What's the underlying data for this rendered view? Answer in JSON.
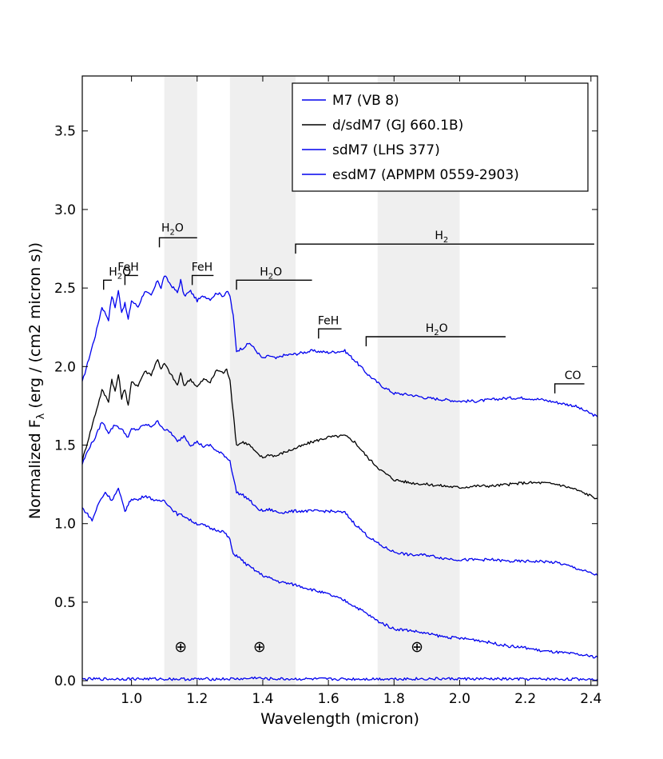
{
  "chart_data": {
    "type": "line",
    "title": "",
    "xlabel": "Wavelength (micron)",
    "ylabel_main": "Normalized F",
    "ylabel_sub": "λ",
    "ylabel_unit": " (erg / (cm2 micron s))",
    "xlim": [
      0.85,
      2.42
    ],
    "ylim": [
      -0.03,
      3.85
    ],
    "x_ticks": [
      {
        "v": 1.0,
        "label": "1.0"
      },
      {
        "v": 1.2,
        "label": "1.2"
      },
      {
        "v": 1.4,
        "label": "1.4"
      },
      {
        "v": 1.6,
        "label": "1.6"
      },
      {
        "v": 1.8,
        "label": "1.8"
      },
      {
        "v": 2.0,
        "label": "2.0"
      },
      {
        "v": 2.2,
        "label": "2.2"
      },
      {
        "v": 2.4,
        "label": "2.4"
      }
    ],
    "y_ticks": [
      {
        "v": 0.0,
        "label": "0.0"
      },
      {
        "v": 0.5,
        "label": "0.5"
      },
      {
        "v": 1.0,
        "label": "1.0"
      },
      {
        "v": 1.5,
        "label": "1.5"
      },
      {
        "v": 2.0,
        "label": "2.0"
      },
      {
        "v": 2.5,
        "label": "2.5"
      },
      {
        "v": 3.0,
        "label": "3.0"
      },
      {
        "v": 3.5,
        "label": "3.5"
      }
    ],
    "telluric_bands": [
      [
        1.1,
        1.2
      ],
      [
        1.3,
        1.5
      ],
      [
        1.75,
        2.0
      ]
    ],
    "earth_symbol": "⊕",
    "earth_symbols_x": [
      1.15,
      1.39,
      1.87
    ],
    "earth_symbol_y": 0.22,
    "legend": [
      {
        "label": "M7 (VB 8)",
        "color": "#0000ee"
      },
      {
        "label": "d/sdM7 (GJ 660.1B)",
        "color": "#000000"
      },
      {
        "label": "sdM7 (LHS 377)",
        "color": "#0000ee"
      },
      {
        "label": "esdM7 (APMPM 0559-2903)",
        "color": "#0000ee"
      }
    ],
    "series": [
      {
        "name": "M7 (VB 8)",
        "color": "#0000ee",
        "x": [
          0.85,
          0.87,
          0.89,
          0.91,
          0.93,
          0.94,
          0.95,
          0.96,
          0.97,
          0.98,
          0.99,
          1.0,
          1.02,
          1.04,
          1.06,
          1.08,
          1.09,
          1.1,
          1.12,
          1.14,
          1.15,
          1.16,
          1.18,
          1.2,
          1.22,
          1.24,
          1.26,
          1.28,
          1.29,
          1.3,
          1.31,
          1.32,
          1.34,
          1.36,
          1.38,
          1.4,
          1.42,
          1.44,
          1.46,
          1.5,
          1.55,
          1.6,
          1.65,
          1.68,
          1.72,
          1.76,
          1.8,
          1.85,
          1.9,
          1.95,
          2.0,
          2.05,
          2.1,
          2.15,
          2.2,
          2.25,
          2.3,
          2.35,
          2.42
        ],
        "y": [
          1.9,
          2.05,
          2.2,
          2.38,
          2.3,
          2.45,
          2.38,
          2.48,
          2.35,
          2.4,
          2.3,
          2.42,
          2.38,
          2.48,
          2.45,
          2.55,
          2.5,
          2.58,
          2.52,
          2.47,
          2.55,
          2.45,
          2.48,
          2.42,
          2.45,
          2.43,
          2.47,
          2.45,
          2.48,
          2.45,
          2.32,
          2.1,
          2.12,
          2.15,
          2.1,
          2.05,
          2.07,
          2.05,
          2.07,
          2.08,
          2.1,
          2.09,
          2.1,
          2.04,
          1.95,
          1.88,
          1.83,
          1.82,
          1.8,
          1.79,
          1.78,
          1.78,
          1.79,
          1.8,
          1.8,
          1.79,
          1.77,
          1.75,
          1.68
        ]
      },
      {
        "name": "d/sdM7 (GJ 660.1B)",
        "color": "#000000",
        "x": [
          0.85,
          0.87,
          0.89,
          0.91,
          0.93,
          0.94,
          0.95,
          0.96,
          0.97,
          0.98,
          0.99,
          1.0,
          1.02,
          1.04,
          1.06,
          1.08,
          1.09,
          1.1,
          1.12,
          1.14,
          1.15,
          1.16,
          1.18,
          1.2,
          1.22,
          1.24,
          1.26,
          1.28,
          1.29,
          1.3,
          1.31,
          1.32,
          1.34,
          1.36,
          1.38,
          1.4,
          1.42,
          1.44,
          1.46,
          1.5,
          1.55,
          1.6,
          1.65,
          1.68,
          1.72,
          1.76,
          1.8,
          1.85,
          1.9,
          1.95,
          2.0,
          2.05,
          2.1,
          2.15,
          2.2,
          2.25,
          2.3,
          2.35,
          2.42
        ],
        "y": [
          1.4,
          1.55,
          1.7,
          1.85,
          1.78,
          1.92,
          1.84,
          1.95,
          1.8,
          1.86,
          1.75,
          1.9,
          1.88,
          1.97,
          1.95,
          2.05,
          1.98,
          2.02,
          1.95,
          1.88,
          1.96,
          1.88,
          1.92,
          1.87,
          1.92,
          1.9,
          1.98,
          1.96,
          1.98,
          1.92,
          1.7,
          1.5,
          1.52,
          1.5,
          1.45,
          1.42,
          1.44,
          1.43,
          1.45,
          1.48,
          1.52,
          1.55,
          1.56,
          1.52,
          1.42,
          1.34,
          1.28,
          1.26,
          1.25,
          1.24,
          1.23,
          1.24,
          1.24,
          1.25,
          1.26,
          1.26,
          1.25,
          1.22,
          1.16
        ]
      },
      {
        "name": "sdM7 (LHS 377)",
        "color": "#0000ee",
        "x": [
          0.85,
          0.87,
          0.89,
          0.91,
          0.93,
          0.95,
          0.97,
          0.99,
          1.0,
          1.02,
          1.04,
          1.06,
          1.08,
          1.1,
          1.12,
          1.14,
          1.16,
          1.18,
          1.2,
          1.22,
          1.24,
          1.26,
          1.28,
          1.3,
          1.31,
          1.32,
          1.34,
          1.36,
          1.38,
          1.4,
          1.42,
          1.45,
          1.5,
          1.55,
          1.6,
          1.65,
          1.68,
          1.72,
          1.76,
          1.8,
          1.85,
          1.9,
          1.95,
          2.0,
          2.05,
          2.1,
          2.15,
          2.2,
          2.25,
          2.3,
          2.35,
          2.42
        ],
        "y": [
          1.38,
          1.48,
          1.55,
          1.65,
          1.58,
          1.63,
          1.6,
          1.55,
          1.6,
          1.6,
          1.63,
          1.62,
          1.65,
          1.6,
          1.58,
          1.52,
          1.56,
          1.5,
          1.52,
          1.49,
          1.5,
          1.46,
          1.44,
          1.4,
          1.3,
          1.2,
          1.18,
          1.15,
          1.1,
          1.08,
          1.09,
          1.07,
          1.08,
          1.08,
          1.08,
          1.07,
          1.0,
          0.92,
          0.86,
          0.82,
          0.8,
          0.8,
          0.78,
          0.77,
          0.77,
          0.77,
          0.76,
          0.76,
          0.76,
          0.75,
          0.72,
          0.67
        ]
      },
      {
        "name": "esdM7 (APMPM 0559-2903)",
        "color": "#0000ee",
        "x": [
          0.85,
          0.87,
          0.88,
          0.9,
          0.92,
          0.94,
          0.96,
          0.98,
          0.99,
          1.0,
          1.02,
          1.04,
          1.06,
          1.08,
          1.1,
          1.12,
          1.14,
          1.16,
          1.18,
          1.2,
          1.22,
          1.24,
          1.26,
          1.28,
          1.3,
          1.31,
          1.32,
          1.35,
          1.4,
          1.45,
          1.5,
          1.55,
          1.6,
          1.65,
          1.7,
          1.75,
          1.8,
          1.85,
          1.9,
          1.95,
          2.0,
          2.05,
          2.1,
          2.15,
          2.2,
          2.25,
          2.3,
          2.35,
          2.42
        ],
        "y": [
          1.1,
          1.05,
          1.02,
          1.13,
          1.2,
          1.15,
          1.22,
          1.08,
          1.12,
          1.16,
          1.15,
          1.18,
          1.16,
          1.14,
          1.15,
          1.1,
          1.06,
          1.05,
          1.02,
          1.0,
          0.99,
          0.97,
          0.96,
          0.95,
          0.9,
          0.8,
          0.8,
          0.74,
          0.67,
          0.63,
          0.61,
          0.58,
          0.55,
          0.51,
          0.45,
          0.38,
          0.33,
          0.32,
          0.3,
          0.28,
          0.27,
          0.26,
          0.24,
          0.22,
          0.21,
          0.19,
          0.18,
          0.17,
          0.15
        ]
      },
      {
        "name": "noise",
        "color": "#0000ee",
        "x": [
          0.85,
          1.0,
          1.2,
          1.35,
          1.38,
          1.4,
          1.6,
          1.8,
          2.0,
          2.2,
          2.42
        ],
        "y": [
          0.01,
          0.012,
          0.01,
          0.012,
          0.02,
          0.012,
          0.01,
          0.012,
          0.012,
          0.01,
          0.01
        ]
      }
    ],
    "annotations": [
      {
        "label": "H",
        "sub": "2",
        "tail": "O",
        "x1": 0.915,
        "x2": 0.94,
        "bar_y": 2.55,
        "text_x": 0.965,
        "text_y": 2.58
      },
      {
        "label": "FeH",
        "sub": "",
        "tail": "",
        "x1": 0.98,
        "x2": 1.02,
        "bar_y": 2.58,
        "text_x": 0.99,
        "text_y": 2.61
      },
      {
        "label": "H",
        "sub": "2",
        "tail": "O",
        "x1": 1.085,
        "x2": 1.2,
        "bar_y": 2.82,
        "text_x": 1.125,
        "text_y": 2.86
      },
      {
        "label": "FeH",
        "sub": "",
        "tail": "",
        "x1": 1.185,
        "x2": 1.25,
        "bar_y": 2.58,
        "text_x": 1.215,
        "text_y": 2.61
      },
      {
        "label": "H",
        "sub": "2",
        "tail": "O",
        "x1": 1.32,
        "x2": 1.55,
        "bar_y": 2.55,
        "text_x": 1.425,
        "text_y": 2.58
      },
      {
        "label": "H",
        "sub": "2",
        "tail": "",
        "x1": 1.5,
        "x2": 2.41,
        "bar_y": 2.78,
        "text_x": 1.945,
        "text_y": 2.81
      },
      {
        "label": "FeH",
        "sub": "",
        "tail": "",
        "x1": 1.57,
        "x2": 1.64,
        "bar_y": 2.24,
        "text_x": 1.6,
        "text_y": 2.27
      },
      {
        "label": "H",
        "sub": "2",
        "tail": "O",
        "x1": 1.715,
        "x2": 2.14,
        "bar_y": 2.19,
        "text_x": 1.93,
        "text_y": 2.22
      },
      {
        "label": "CO",
        "sub": "",
        "tail": "",
        "x1": 2.29,
        "x2": 2.38,
        "bar_y": 1.89,
        "text_x": 2.345,
        "text_y": 1.92
      }
    ]
  }
}
